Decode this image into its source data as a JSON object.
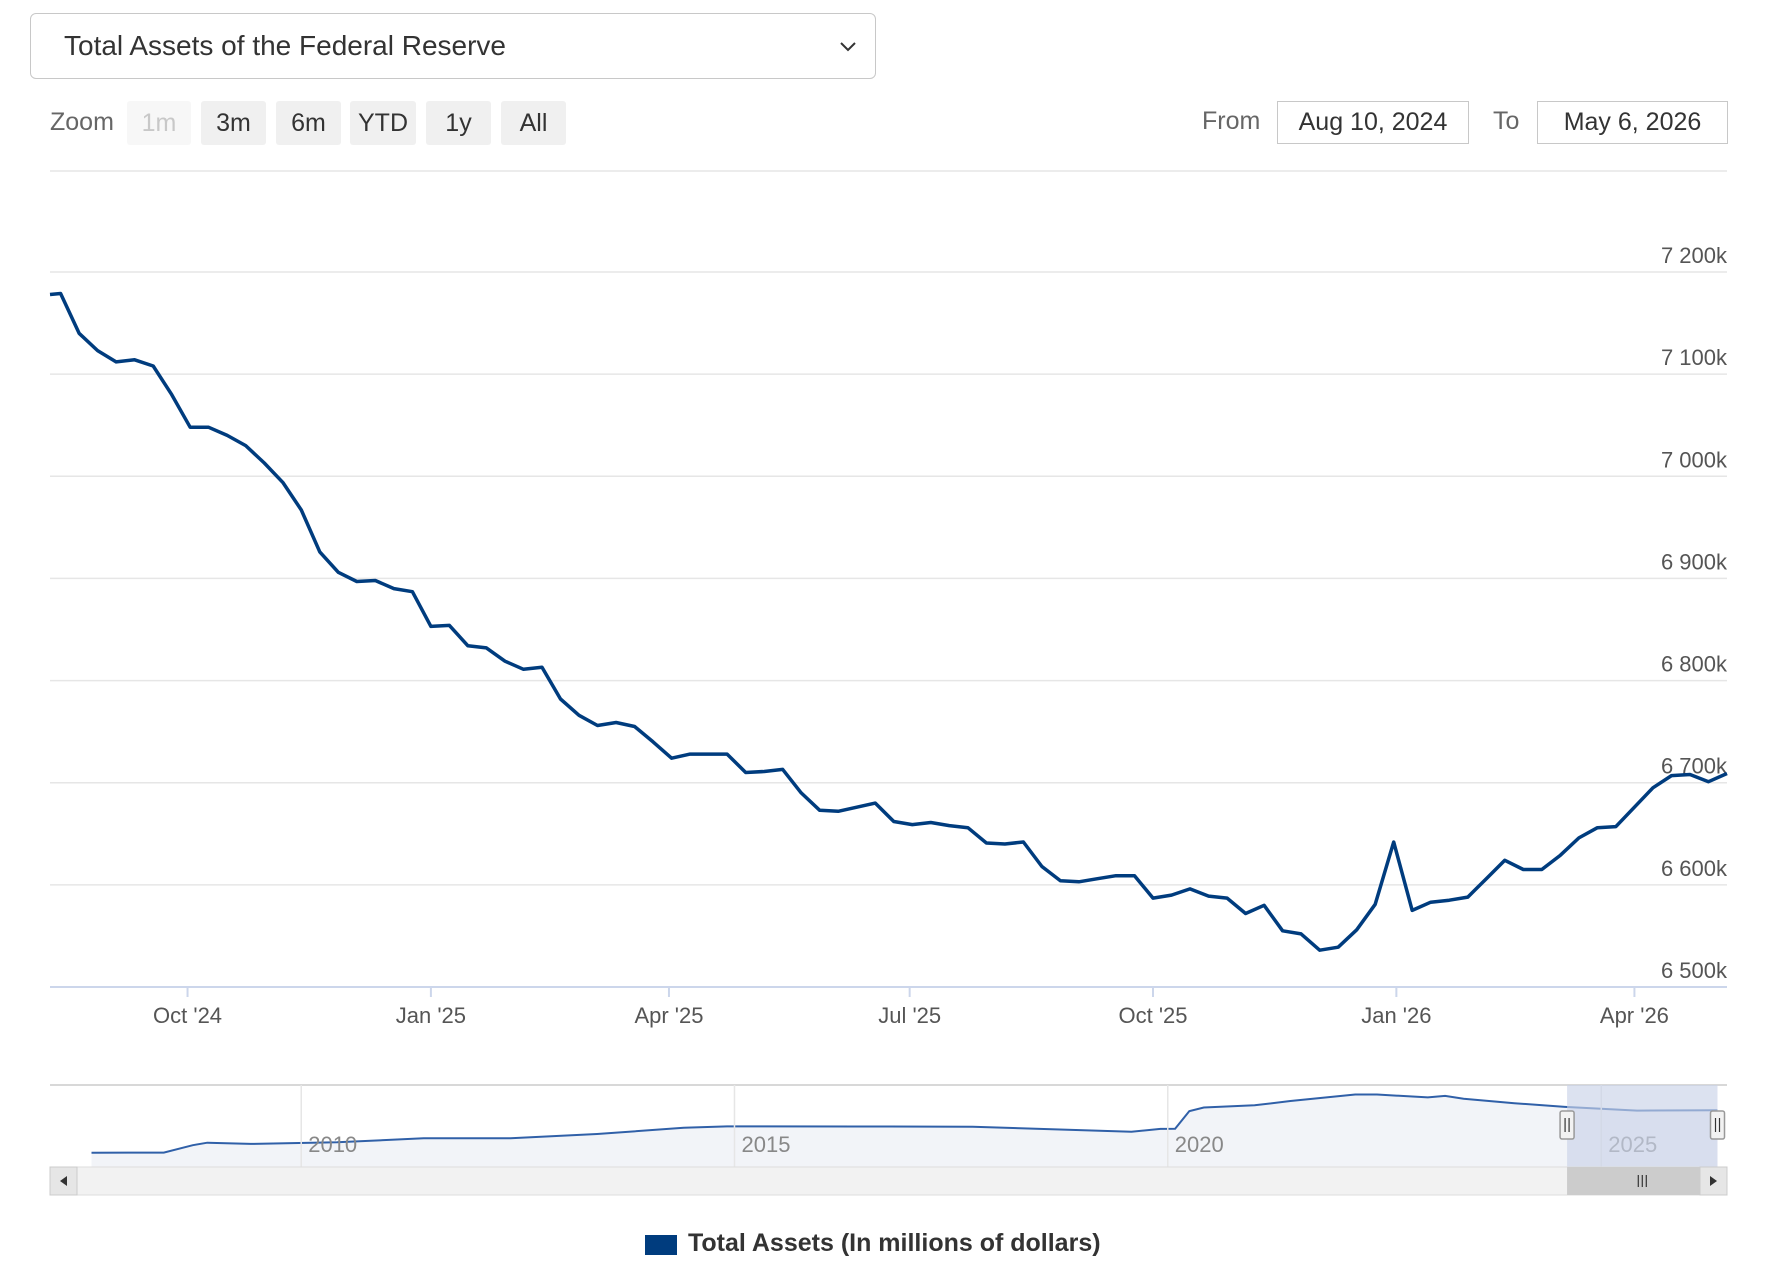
{
  "selector": {
    "value": "Total Assets of the Federal Reserve"
  },
  "zoom": {
    "label": "Zoom",
    "buttons": [
      {
        "label": "1m",
        "disabled": true
      },
      {
        "label": "3m",
        "disabled": false
      },
      {
        "label": "6m",
        "disabled": false
      },
      {
        "label": "YTD",
        "disabled": false
      },
      {
        "label": "1y",
        "disabled": false
      },
      {
        "label": "All",
        "disabled": false
      }
    ]
  },
  "range": {
    "from_label": "From",
    "from_value": "Aug 10, 2024",
    "to_label": "To",
    "to_value": "May 6, 2026"
  },
  "colors": {
    "series": "#003c7e",
    "grid": "#e6e6e6",
    "navigator_fill": "#f2f4f8",
    "navigator_mask": "#c9d3e8"
  },
  "chart_data": {
    "type": "line",
    "title": "",
    "xlabel": "",
    "ylabel": "",
    "ylim": [
      6500000,
      7200000
    ],
    "y_ticks": [
      {
        "value": 6500000,
        "label": "6 500k"
      },
      {
        "value": 6600000,
        "label": "6 600k"
      },
      {
        "value": 6700000,
        "label": "6 700k"
      },
      {
        "value": 6800000,
        "label": "6 800k"
      },
      {
        "value": 6900000,
        "label": "6 900k"
      },
      {
        "value": 7000000,
        "label": "7 000k"
      },
      {
        "value": 7100000,
        "label": "7 100k"
      },
      {
        "value": 7200000,
        "label": "7 200k"
      }
    ],
    "x_ticks": [
      {
        "date": "2024-10-01",
        "label": "Oct '24"
      },
      {
        "date": "2025-01-01",
        "label": "Jan '25"
      },
      {
        "date": "2025-04-01",
        "label": "Apr '25"
      },
      {
        "date": "2025-07-01",
        "label": "Jul '25"
      },
      {
        "date": "2025-10-01",
        "label": "Oct '25"
      },
      {
        "date": "2026-01-01",
        "label": "Jan '26"
      },
      {
        "date": "2026-04-01",
        "label": "Apr '26"
      }
    ],
    "x_range": [
      "2024-08-10",
      "2026-05-06"
    ],
    "series": [
      {
        "name": "Total Assets (In millions of dollars)",
        "points": [
          [
            "2024-08-10",
            7178000
          ],
          [
            "2024-08-14",
            7179000
          ],
          [
            "2024-08-21",
            7140000
          ],
          [
            "2024-08-28",
            7123000
          ],
          [
            "2024-09-04",
            7112000
          ],
          [
            "2024-09-11",
            7114000
          ],
          [
            "2024-09-18",
            7108000
          ],
          [
            "2024-09-25",
            7080000
          ],
          [
            "2024-10-02",
            7048000
          ],
          [
            "2024-10-09",
            7048000
          ],
          [
            "2024-10-16",
            7040000
          ],
          [
            "2024-10-23",
            7030000
          ],
          [
            "2024-10-30",
            7013000
          ],
          [
            "2024-11-06",
            6994000
          ],
          [
            "2024-11-13",
            6967000
          ],
          [
            "2024-11-20",
            6926000
          ],
          [
            "2024-11-27",
            6906000
          ],
          [
            "2024-12-04",
            6897000
          ],
          [
            "2024-12-11",
            6898000
          ],
          [
            "2024-12-18",
            6890000
          ],
          [
            "2024-12-25",
            6887000
          ],
          [
            "2025-01-01",
            6853000
          ],
          [
            "2025-01-08",
            6854000
          ],
          [
            "2025-01-15",
            6834000
          ],
          [
            "2025-01-22",
            6832000
          ],
          [
            "2025-01-29",
            6819000
          ],
          [
            "2025-02-05",
            6811000
          ],
          [
            "2025-02-12",
            6813000
          ],
          [
            "2025-02-19",
            6782000
          ],
          [
            "2025-02-26",
            6766000
          ],
          [
            "2025-03-05",
            6756000
          ],
          [
            "2025-03-12",
            6759000
          ],
          [
            "2025-03-19",
            6755000
          ],
          [
            "2025-03-26",
            6740000
          ],
          [
            "2025-04-02",
            6724000
          ],
          [
            "2025-04-09",
            6728000
          ],
          [
            "2025-04-16",
            6728000
          ],
          [
            "2025-04-23",
            6728000
          ],
          [
            "2025-04-30",
            6710000
          ],
          [
            "2025-05-07",
            6711000
          ],
          [
            "2025-05-14",
            6713000
          ],
          [
            "2025-05-21",
            6690000
          ],
          [
            "2025-05-28",
            6673000
          ],
          [
            "2025-06-04",
            6672000
          ],
          [
            "2025-06-11",
            6676000
          ],
          [
            "2025-06-18",
            6680000
          ],
          [
            "2025-06-25",
            6662000
          ],
          [
            "2025-07-02",
            6659000
          ],
          [
            "2025-07-09",
            6661000
          ],
          [
            "2025-07-16",
            6658000
          ],
          [
            "2025-07-23",
            6656000
          ],
          [
            "2025-07-30",
            6641000
          ],
          [
            "2025-08-06",
            6640000
          ],
          [
            "2025-08-13",
            6642000
          ],
          [
            "2025-08-20",
            6618000
          ],
          [
            "2025-08-27",
            6604000
          ],
          [
            "2025-09-03",
            6603000
          ],
          [
            "2025-09-10",
            6606000
          ],
          [
            "2025-09-17",
            6609000
          ],
          [
            "2025-09-24",
            6609000
          ],
          [
            "2025-10-01",
            6587000
          ],
          [
            "2025-10-08",
            6590000
          ],
          [
            "2025-10-15",
            6596000
          ],
          [
            "2025-10-22",
            6589000
          ],
          [
            "2025-10-29",
            6587000
          ],
          [
            "2025-11-05",
            6572000
          ],
          [
            "2025-11-12",
            6580000
          ],
          [
            "2025-11-19",
            6555000
          ],
          [
            "2025-11-26",
            6552000
          ],
          [
            "2025-12-03",
            6536000
          ],
          [
            "2025-12-10",
            6539000
          ],
          [
            "2025-12-17",
            6556000
          ],
          [
            "2025-12-24",
            6581000
          ],
          [
            "2025-12-31",
            6642000
          ],
          [
            "2026-01-07",
            6575000
          ],
          [
            "2026-01-14",
            6583000
          ],
          [
            "2026-01-21",
            6585000
          ],
          [
            "2026-01-28",
            6588000
          ],
          [
            "2026-02-04",
            6606000
          ],
          [
            "2026-02-11",
            6624000
          ],
          [
            "2026-02-18",
            6615000
          ],
          [
            "2026-02-25",
            6615000
          ],
          [
            "2026-03-04",
            6629000
          ],
          [
            "2026-03-11",
            6646000
          ],
          [
            "2026-03-18",
            6656000
          ],
          [
            "2026-03-25",
            6657000
          ],
          [
            "2026-04-01",
            6676000
          ],
          [
            "2026-04-08",
            6695000
          ],
          [
            "2026-04-15",
            6707000
          ],
          [
            "2026-04-22",
            6708000
          ],
          [
            "2026-04-29",
            6701000
          ],
          [
            "2026-05-06",
            6709000
          ]
        ]
      }
    ],
    "navigator": {
      "x_labels": [
        "2010",
        "2015",
        "2020",
        "2025"
      ],
      "points": [
        [
          "2007-08-01",
          870000
        ],
        [
          "2008-06-01",
          880000
        ],
        [
          "2008-10-01",
          1900000
        ],
        [
          "2008-12-01",
          2250000
        ],
        [
          "2009-06-01",
          2080000
        ],
        [
          "2010-06-01",
          2300000
        ],
        [
          "2011-06-01",
          2850000
        ],
        [
          "2012-06-01",
          2850000
        ],
        [
          "2013-06-01",
          3450000
        ],
        [
          "2014-06-01",
          4300000
        ],
        [
          "2014-12-01",
          4500000
        ],
        [
          "2016-06-01",
          4480000
        ],
        [
          "2017-10-01",
          4460000
        ],
        [
          "2019-08-01",
          3760000
        ],
        [
          "2019-12-01",
          4150000
        ],
        [
          "2020-02-01",
          4170000
        ],
        [
          "2020-04-01",
          6600000
        ],
        [
          "2020-06-01",
          7100000
        ],
        [
          "2021-01-01",
          7400000
        ],
        [
          "2021-06-01",
          8000000
        ],
        [
          "2022-03-01",
          8900000
        ],
        [
          "2022-06-01",
          8900000
        ],
        [
          "2023-01-01",
          8500000
        ],
        [
          "2023-03-15",
          8700000
        ],
        [
          "2023-06-01",
          8300000
        ],
        [
          "2024-01-01",
          7700000
        ],
        [
          "2024-08-01",
          7180000
        ],
        [
          "2025-06-01",
          6670000
        ],
        [
          "2026-05-06",
          6709000
        ]
      ]
    },
    "legend": "bottom-center",
    "grid": true
  },
  "legend": {
    "label": "Total Assets (In millions of dollars)"
  }
}
